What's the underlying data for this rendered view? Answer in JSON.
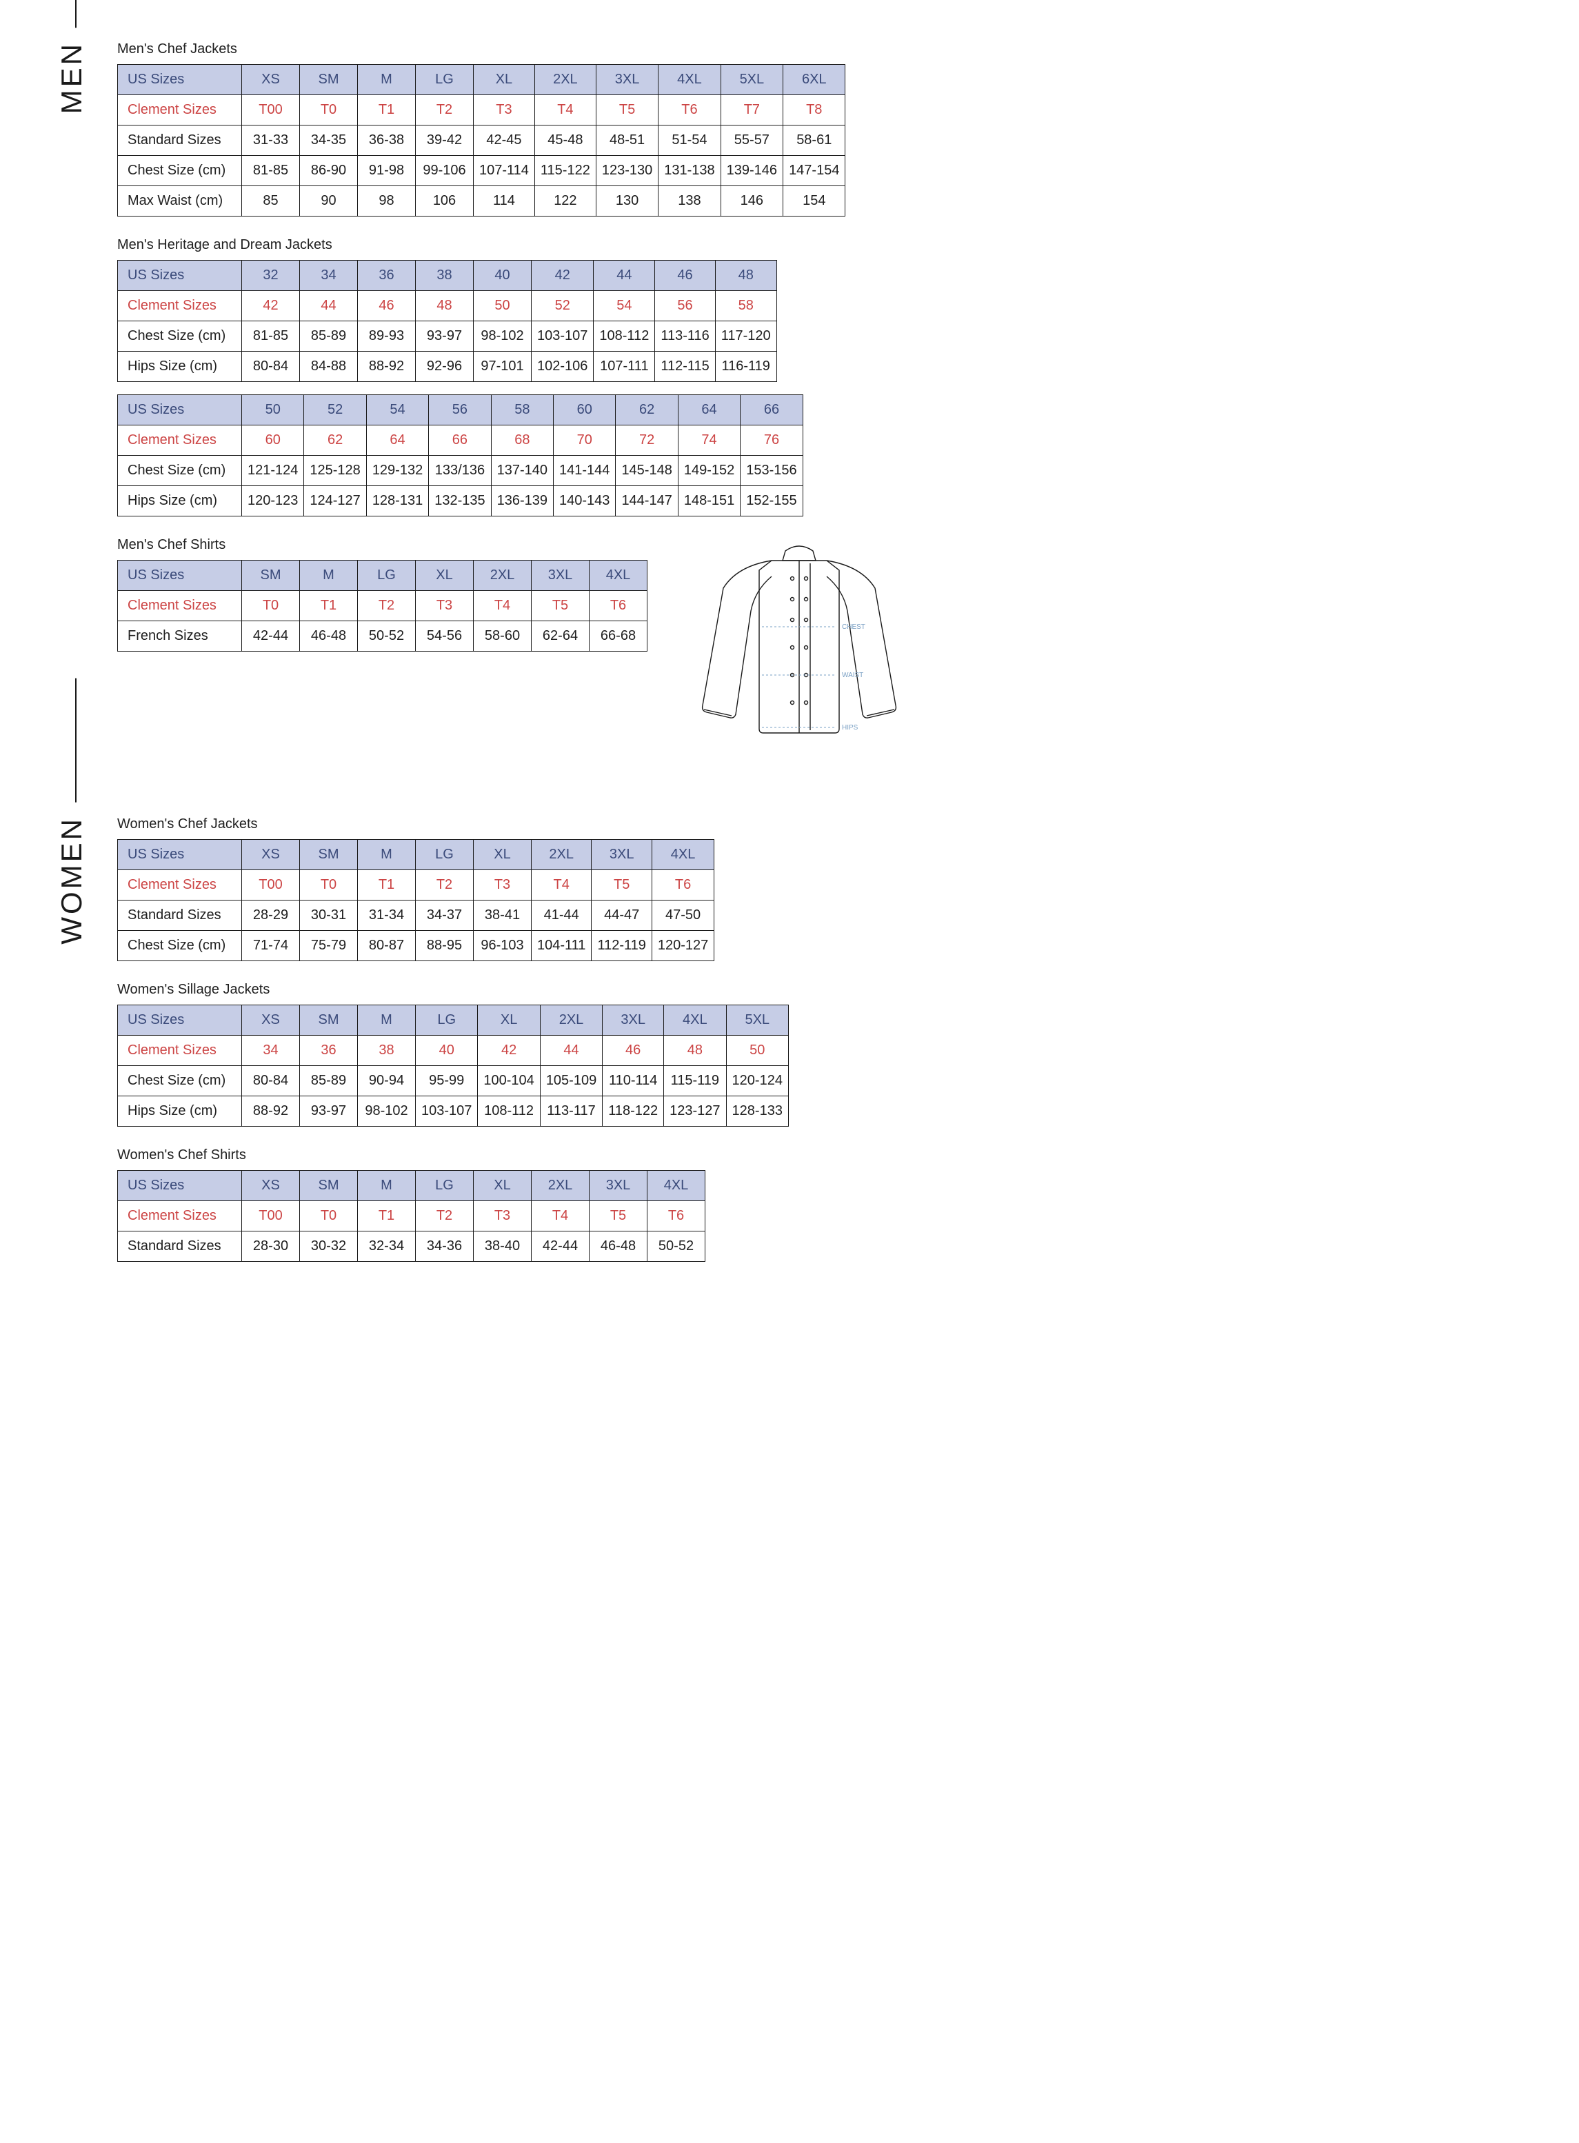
{
  "labels": {
    "men": "MEN",
    "women": "WOMEN",
    "us_sizes": "US Sizes",
    "clement_sizes": "Clement Sizes",
    "standard_sizes": "Standard Sizes",
    "chest_cm": "Chest Size (cm)",
    "max_waist_cm": "Max Waist (cm)",
    "hips_cm": "Hips Size (cm)",
    "french_sizes": "French Sizes",
    "jacket_chest": "CHEST",
    "jacket_waist": "WAIST",
    "jacket_hips": "HIPS"
  },
  "colors": {
    "header_bg": "#c6cde6",
    "us_text": "#3a4a7a",
    "clement_text": "#c44444",
    "border": "#1a1a1a",
    "page_bg": "#ffffff",
    "text": "#202020"
  },
  "tables": {
    "men_chef_jackets": {
      "title": "Men's Chef Jackets",
      "col_count": 10,
      "rows": [
        {
          "key": "us",
          "cells": [
            "XS",
            "SM",
            "M",
            "LG",
            "XL",
            "2XL",
            "3XL",
            "4XL",
            "5XL",
            "6XL"
          ]
        },
        {
          "key": "clement",
          "cells": [
            "T00",
            "T0",
            "T1",
            "T2",
            "T3",
            "T4",
            "T5",
            "T6",
            "T7",
            "T8"
          ]
        },
        {
          "key": "standard",
          "cells": [
            "31-33",
            "34-35",
            "36-38",
            "39-42",
            "42-45",
            "45-48",
            "48-51",
            "51-54",
            "55-57",
            "58-61"
          ]
        },
        {
          "key": "chest",
          "cells": [
            "81-85",
            "86-90",
            "91-98",
            "99-106",
            "107-114",
            "115-122",
            "123-130",
            "131-138",
            "139-146",
            "147-154"
          ]
        },
        {
          "key": "maxwaist",
          "cells": [
            "85",
            "90",
            "98",
            "106",
            "114",
            "122",
            "130",
            "138",
            "146",
            "154"
          ]
        }
      ]
    },
    "men_heritage_a": {
      "title": "Men's Heritage and Dream Jackets",
      "col_count": 9,
      "rows": [
        {
          "key": "us",
          "cells": [
            "32",
            "34",
            "36",
            "38",
            "40",
            "42",
            "44",
            "46",
            "48"
          ]
        },
        {
          "key": "clement",
          "cells": [
            "42",
            "44",
            "46",
            "48",
            "50",
            "52",
            "54",
            "56",
            "58"
          ]
        },
        {
          "key": "chest",
          "cells": [
            "81-85",
            "85-89",
            "89-93",
            "93-97",
            "98-102",
            "103-107",
            "108-112",
            "113-116",
            "117-120"
          ]
        },
        {
          "key": "hips",
          "cells": [
            "80-84",
            "84-88",
            "88-92",
            "92-96",
            "97-101",
            "102-106",
            "107-111",
            "112-115",
            "116-119"
          ]
        }
      ]
    },
    "men_heritage_b": {
      "col_count": 9,
      "rows": [
        {
          "key": "us",
          "cells": [
            "50",
            "52",
            "54",
            "56",
            "58",
            "60",
            "62",
            "64",
            "66"
          ]
        },
        {
          "key": "clement",
          "cells": [
            "60",
            "62",
            "64",
            "66",
            "68",
            "70",
            "72",
            "74",
            "76"
          ]
        },
        {
          "key": "chest",
          "cells": [
            "121-124",
            "125-128",
            "129-132",
            "133/136",
            "137-140",
            "141-144",
            "145-148",
            "149-152",
            "153-156"
          ]
        },
        {
          "key": "hips",
          "cells": [
            "120-123",
            "124-127",
            "128-131",
            "132-135",
            "136-139",
            "140-143",
            "144-147",
            "148-151",
            "152-155"
          ]
        }
      ]
    },
    "men_chef_shirts": {
      "title": "Men's Chef Shirts",
      "col_count": 7,
      "rows": [
        {
          "key": "us",
          "cells": [
            "SM",
            "M",
            "LG",
            "XL",
            "2XL",
            "3XL",
            "4XL"
          ]
        },
        {
          "key": "clement",
          "cells": [
            "T0",
            "T1",
            "T2",
            "T3",
            "T4",
            "T5",
            "T6"
          ]
        },
        {
          "key": "french",
          "cells": [
            "42-44",
            "46-48",
            "50-52",
            "54-56",
            "58-60",
            "62-64",
            "66-68"
          ]
        }
      ]
    },
    "women_chef_jackets": {
      "title": "Women's Chef Jackets",
      "col_count": 8,
      "rows": [
        {
          "key": "us",
          "cells": [
            "XS",
            "SM",
            "M",
            "LG",
            "XL",
            "2XL",
            "3XL",
            "4XL"
          ]
        },
        {
          "key": "clement",
          "cells": [
            "T00",
            "T0",
            "T1",
            "T2",
            "T3",
            "T4",
            "T5",
            "T6"
          ]
        },
        {
          "key": "standard",
          "cells": [
            "28-29",
            "30-31",
            "31-34",
            "34-37",
            "38-41",
            "41-44",
            "44-47",
            "47-50"
          ]
        },
        {
          "key": "chest",
          "cells": [
            "71-74",
            "75-79",
            "80-87",
            "88-95",
            "96-103",
            "104-111",
            "112-119",
            "120-127"
          ]
        }
      ]
    },
    "women_sillage": {
      "title": "Women's Sillage Jackets",
      "col_count": 9,
      "rows": [
        {
          "key": "us",
          "cells": [
            "XS",
            "SM",
            "M",
            "LG",
            "XL",
            "2XL",
            "3XL",
            "4XL",
            "5XL"
          ]
        },
        {
          "key": "clement",
          "cells": [
            "34",
            "36",
            "38",
            "40",
            "42",
            "44",
            "46",
            "48",
            "50"
          ]
        },
        {
          "key": "chest",
          "cells": [
            "80-84",
            "85-89",
            "90-94",
            "95-99",
            "100-104",
            "105-109",
            "110-114",
            "115-119",
            "120-124"
          ]
        },
        {
          "key": "hips",
          "cells": [
            "88-92",
            "93-97",
            "98-102",
            "103-107",
            "108-112",
            "113-117",
            "118-122",
            "123-127",
            "128-133"
          ]
        }
      ]
    },
    "women_chef_shirts": {
      "title": "Women's Chef Shirts",
      "col_count": 8,
      "rows": [
        {
          "key": "us",
          "cells": [
            "XS",
            "SM",
            "M",
            "LG",
            "XL",
            "2XL",
            "3XL",
            "4XL"
          ]
        },
        {
          "key": "clement",
          "cells": [
            "T00",
            "T0",
            "T1",
            "T2",
            "T3",
            "T4",
            "T5",
            "T6"
          ]
        },
        {
          "key": "standard",
          "cells": [
            "28-30",
            "30-32",
            "32-34",
            "34-36",
            "38-40",
            "42-44",
            "46-48",
            "50-52"
          ]
        }
      ]
    }
  },
  "row_meta": {
    "us": {
      "label_key": "us_sizes",
      "class": "row-us"
    },
    "clement": {
      "label_key": "clement_sizes",
      "class": "row-clement"
    },
    "standard": {
      "label_key": "standard_sizes",
      "class": ""
    },
    "chest": {
      "label_key": "chest_cm",
      "class": ""
    },
    "maxwaist": {
      "label_key": "max_waist_cm",
      "class": ""
    },
    "hips": {
      "label_key": "hips_cm",
      "class": ""
    },
    "french": {
      "label_key": "french_sizes",
      "class": ""
    }
  }
}
